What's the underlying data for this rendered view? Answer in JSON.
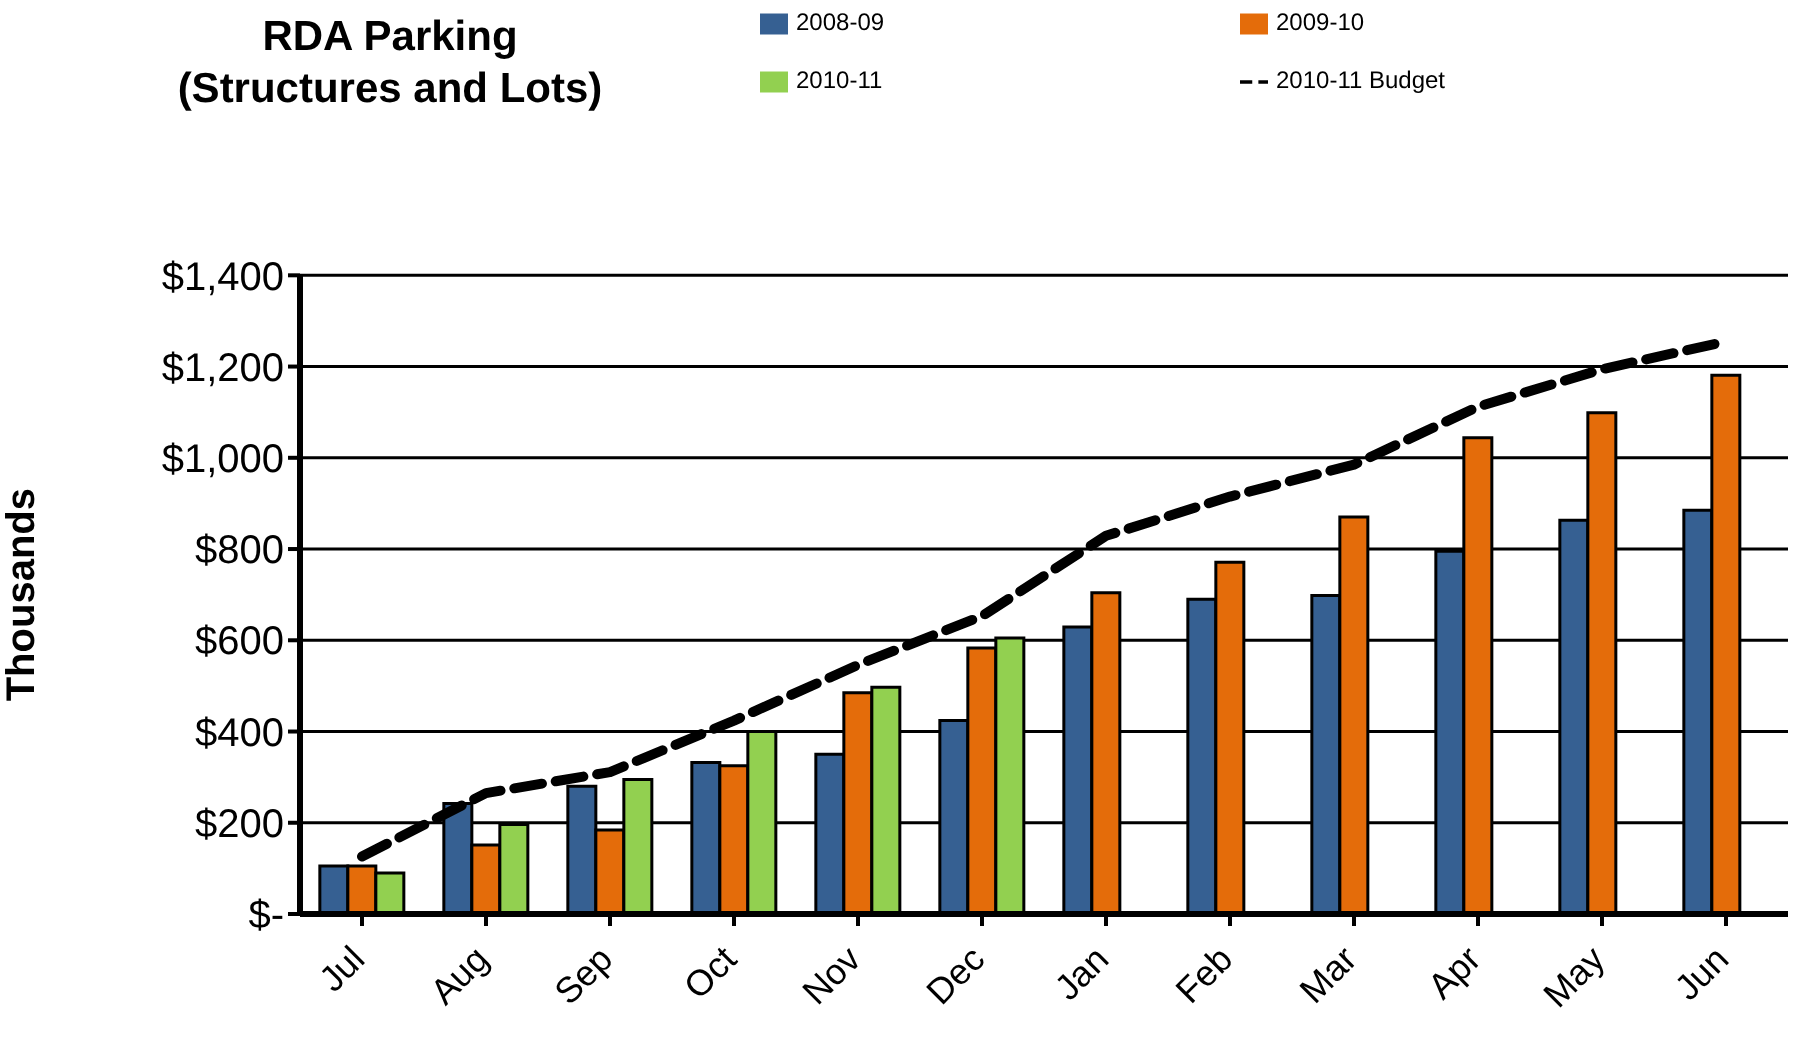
{
  "chart_data": {
    "type": "bar",
    "title": "RDA Parking",
    "subtitle": "(Structures and Lots)",
    "ylabel": "Thousands",
    "categories": [
      "Jul",
      "Aug",
      "Sep",
      "Oct",
      "Nov",
      "Dec",
      "Jan",
      "Feb",
      "Mar",
      "Apr",
      "May",
      "Jun"
    ],
    "series": [
      {
        "name": "2008-09",
        "color": "#366092",
        "values": [
          105,
          242,
          280,
          332,
          350,
          424,
          629,
          690,
          698,
          795,
          863,
          885
        ]
      },
      {
        "name": "2009-10",
        "color": "#e46c0a",
        "values": [
          105,
          151,
          184,
          325,
          485,
          583,
          704,
          771,
          870,
          1044,
          1099,
          1181
        ]
      },
      {
        "name": "2010-11",
        "color": "#92d050",
        "values": [
          90,
          196,
          295,
          400,
          497,
          605,
          null,
          null,
          null,
          null,
          null,
          null
        ]
      },
      {
        "name": "2010-11  Budget",
        "type": "line",
        "color": "#000000",
        "line_style": "dashed",
        "marker": "none",
        "values": [
          126,
          265,
          311,
          424,
          546,
          653,
          829,
          915,
          985,
          1112,
          1194,
          1255
        ]
      }
    ],
    "ylim": [
      0,
      1400
    ],
    "yticks": [
      {
        "value": 0,
        "label": "$-"
      },
      {
        "value": 200,
        "label": "$200"
      },
      {
        "value": 400,
        "label": "$400"
      },
      {
        "value": 600,
        "label": "$600"
      },
      {
        "value": 800,
        "label": "$800"
      },
      {
        "value": 1000,
        "label": "$1,000"
      },
      {
        "value": 1200,
        "label": "$1,200"
      },
      {
        "value": 1400,
        "label": "$1,400"
      }
    ],
    "grid": "y",
    "legend": "top right"
  }
}
